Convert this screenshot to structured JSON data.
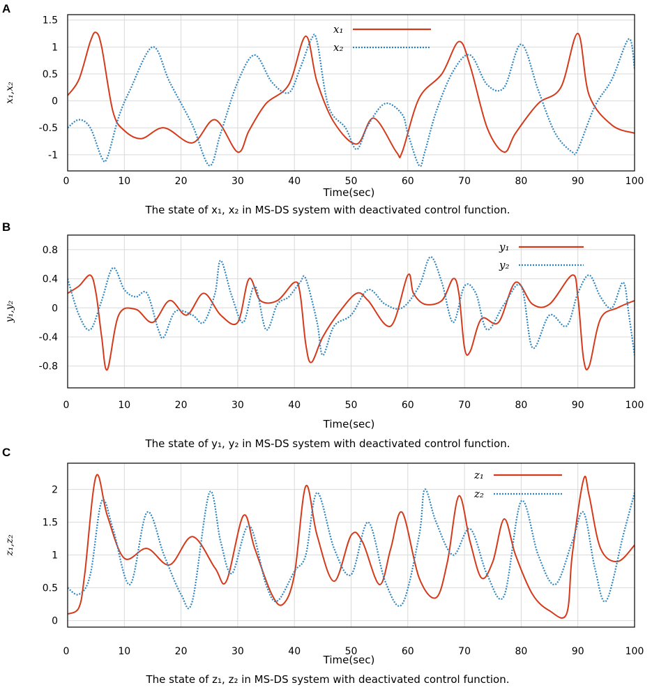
{
  "chart_data": [
    {
      "panel": "A",
      "type": "line",
      "xlabel": "Time(sec)",
      "ylabel": "x₁,x₂",
      "caption": "The state of x₁, x₂ in MS-DS system with deactivated control function.",
      "xlim": [
        0,
        100
      ],
      "ylim": [
        -1.3,
        1.6
      ],
      "xticks": [
        "0",
        "10",
        "20",
        "30",
        "40",
        "50",
        "60",
        "70",
        "80",
        "90",
        "100"
      ],
      "yticks": [
        {
          "v": -1,
          "label": "-1"
        },
        {
          "v": -0.5,
          "label": "-0.5"
        },
        {
          "v": 0,
          "label": "0"
        },
        {
          "v": 0.5,
          "label": "0.5"
        },
        {
          "v": 1,
          "label": "1"
        },
        {
          "v": 1.5,
          "label": "1.5"
        }
      ],
      "series": [
        {
          "name": "x₁",
          "color": "#d43a1a",
          "style": "solid",
          "x": [
            0,
            2,
            4,
            5,
            6,
            8,
            10,
            13,
            17,
            22,
            26,
            30,
            32,
            35,
            39,
            42,
            44,
            47,
            51,
            54,
            58,
            59,
            62,
            66,
            69,
            71,
            74,
            77,
            79,
            83,
            87,
            90,
            92,
            96,
            100
          ],
          "y": [
            0.1,
            0.4,
            1.1,
            1.27,
            1.0,
            -0.2,
            -0.55,
            -0.7,
            -0.5,
            -0.78,
            -0.35,
            -0.95,
            -0.55,
            -0.05,
            0.3,
            1.2,
            0.35,
            -0.4,
            -0.8,
            -0.32,
            -0.95,
            -0.95,
            0.05,
            0.5,
            1.1,
            0.65,
            -0.5,
            -0.95,
            -0.6,
            -0.05,
            0.25,
            1.25,
            0.1,
            -0.45,
            -0.6
          ]
        },
        {
          "name": "x₂",
          "color": "#2e86c1",
          "style": "dotted",
          "x": [
            0,
            2,
            4,
            6,
            7,
            9,
            11,
            15,
            18,
            22,
            25,
            27,
            30,
            33,
            36,
            39,
            41,
            43,
            44,
            46,
            49,
            51,
            53,
            56,
            59,
            60,
            62,
            63,
            65,
            68,
            71,
            74,
            77,
            80,
            83,
            86,
            89,
            90,
            93,
            96,
            99,
            100
          ],
          "y": [
            -0.5,
            -0.35,
            -0.5,
            -1.05,
            -1.05,
            -0.3,
            0.2,
            1.0,
            0.35,
            -0.45,
            -1.2,
            -0.6,
            0.35,
            0.85,
            0.35,
            0.15,
            0.6,
            1.15,
            1.1,
            -0.1,
            -0.5,
            -0.9,
            -0.45,
            -0.05,
            -0.25,
            -0.6,
            -1.2,
            -0.95,
            -0.2,
            0.55,
            0.85,
            0.3,
            0.25,
            1.05,
            0.2,
            -0.6,
            -0.95,
            -0.9,
            -0.1,
            0.4,
            1.15,
            0.6
          ]
        }
      ]
    },
    {
      "panel": "B",
      "type": "line",
      "xlabel": "Time(sec)",
      "ylabel": "y₁,y₂",
      "caption": "The state of y₁, y₂ in MS-DS system with deactivated control function.",
      "xlim": [
        0,
        100
      ],
      "ylim": [
        -1.1,
        1.0
      ],
      "xticks": [
        "0",
        "10",
        "20",
        "30",
        "40",
        "50",
        "60",
        "70",
        "80",
        "90",
        "100"
      ],
      "yticks": [
        {
          "v": -0.8,
          "label": "-0.8"
        },
        {
          "v": -0.4,
          "label": "-0.4"
        },
        {
          "v": 0,
          "label": "0"
        },
        {
          "v": 0.4,
          "label": "0.4"
        },
        {
          "v": 0.8,
          "label": "0.8"
        }
      ],
      "series": [
        {
          "name": "y₁",
          "color": "#d43a1a",
          "style": "solid",
          "x": [
            0,
            2,
            4,
            5,
            6,
            7,
            9,
            12,
            15,
            18,
            21,
            24,
            27,
            30,
            32,
            34,
            37,
            40,
            41,
            42,
            43,
            45,
            48,
            51,
            53,
            57,
            60,
            61,
            63,
            66,
            68,
            69,
            70,
            71,
            73,
            76,
            79,
            82,
            85,
            89,
            90,
            91,
            92,
            94,
            97,
            100
          ],
          "y": [
            0.2,
            0.3,
            0.45,
            0.2,
            -0.4,
            -0.85,
            -0.1,
            -0.02,
            -0.2,
            0.1,
            -0.1,
            0.2,
            -0.1,
            -0.2,
            0.4,
            0.1,
            0.1,
            0.35,
            0.2,
            -0.5,
            -0.75,
            -0.4,
            -0.05,
            0.2,
            0.1,
            -0.25,
            0.45,
            0.2,
            0.05,
            0.1,
            0.4,
            0.2,
            -0.55,
            -0.6,
            -0.15,
            -0.2,
            0.35,
            0.05,
            0.05,
            0.45,
            0.15,
            -0.7,
            -0.8,
            -0.15,
            0.0,
            0.1
          ]
        },
        {
          "name": "y₂",
          "color": "#2e86c1",
          "style": "dotted",
          "x": [
            0,
            2,
            4,
            6,
            8,
            10,
            12,
            14,
            16,
            17,
            19,
            22,
            24,
            26,
            27,
            29,
            31,
            33,
            35,
            37,
            39,
            41,
            42,
            44,
            45,
            47,
            50,
            53,
            56,
            59,
            62,
            64,
            66,
            68,
            70,
            72,
            74,
            77,
            80,
            82,
            85,
            88,
            90,
            92,
            94,
            96,
            98,
            99,
            100
          ],
          "y": [
            0.4,
            -0.1,
            -0.3,
            0.1,
            0.55,
            0.25,
            0.15,
            0.2,
            -0.3,
            -0.4,
            -0.05,
            -0.1,
            -0.2,
            0.2,
            0.65,
            0.15,
            -0.2,
            0.3,
            -0.3,
            0.05,
            0.15,
            0.35,
            0.4,
            -0.2,
            -0.65,
            -0.25,
            -0.1,
            0.25,
            0.05,
            0.0,
            0.3,
            0.7,
            0.35,
            -0.2,
            0.3,
            0.2,
            -0.3,
            0.05,
            0.3,
            -0.55,
            -0.1,
            -0.25,
            0.2,
            0.45,
            0.15,
            0.0,
            0.35,
            -0.1,
            -0.65
          ]
        }
      ]
    },
    {
      "panel": "C",
      "type": "line",
      "xlabel": "Time(sec)",
      "ylabel": "z₁,z₂",
      "caption": "The state of z₁, z₂ in MS-DS system with deactivated control function.",
      "xlim": [
        0,
        100
      ],
      "ylim": [
        -0.1,
        2.4
      ],
      "xticks": [
        "0",
        "10",
        "20",
        "30",
        "40",
        "50",
        "60",
        "70",
        "80",
        "90",
        "100"
      ],
      "yticks": [
        {
          "v": 0,
          "label": "0"
        },
        {
          "v": 0.5,
          "label": "0.5"
        },
        {
          "v": 1,
          "label": "1"
        },
        {
          "v": 1.5,
          "label": "1.5"
        },
        {
          "v": 2,
          "label": "2"
        }
      ],
      "series": [
        {
          "name": "z₁",
          "color": "#d43a1a",
          "style": "solid",
          "x": [
            0,
            2,
            3,
            5,
            7,
            10,
            14,
            18,
            22,
            26,
            28,
            31,
            33,
            36,
            38,
            40,
            42,
            44,
            47,
            50,
            52,
            55,
            57,
            59,
            62,
            65,
            67,
            69,
            71,
            73,
            75,
            77,
            79,
            82,
            85,
            88,
            89,
            91,
            92,
            94,
            97,
            100
          ],
          "y": [
            0.1,
            0.2,
            0.7,
            2.2,
            1.6,
            0.95,
            1.1,
            0.85,
            1.28,
            0.8,
            0.6,
            1.6,
            1.1,
            0.4,
            0.25,
            0.7,
            2.05,
            1.3,
            0.6,
            1.3,
            1.2,
            0.55,
            1.1,
            1.65,
            0.65,
            0.35,
            0.9,
            1.9,
            1.2,
            0.65,
            0.9,
            1.55,
            1.0,
            0.4,
            0.15,
            0.1,
            1.0,
            2.15,
            1.9,
            1.1,
            0.9,
            1.15
          ]
        },
        {
          "name": "z₂",
          "color": "#2e86c1",
          "style": "dotted",
          "x": [
            0,
            2,
            4,
            6,
            8,
            11,
            14,
            17,
            20,
            22,
            25,
            27,
            29,
            32,
            35,
            37,
            40,
            42,
            44,
            47,
            50,
            53,
            56,
            59,
            62,
            63,
            65,
            68,
            71,
            74,
            77,
            80,
            83,
            86,
            89,
            91,
            93,
            95,
            98,
            100
          ],
          "y": [
            0.5,
            0.4,
            0.7,
            1.82,
            1.4,
            0.55,
            1.65,
            1.0,
            0.4,
            0.3,
            1.95,
            1.2,
            0.72,
            1.45,
            0.55,
            0.3,
            0.75,
            1.0,
            1.95,
            1.1,
            0.7,
            1.5,
            0.6,
            0.25,
            1.3,
            2.0,
            1.5,
            1.0,
            1.4,
            0.7,
            0.38,
            1.82,
            1.0,
            0.55,
            1.2,
            1.65,
            0.8,
            0.3,
            1.3,
            1.95
          ]
        }
      ]
    }
  ]
}
